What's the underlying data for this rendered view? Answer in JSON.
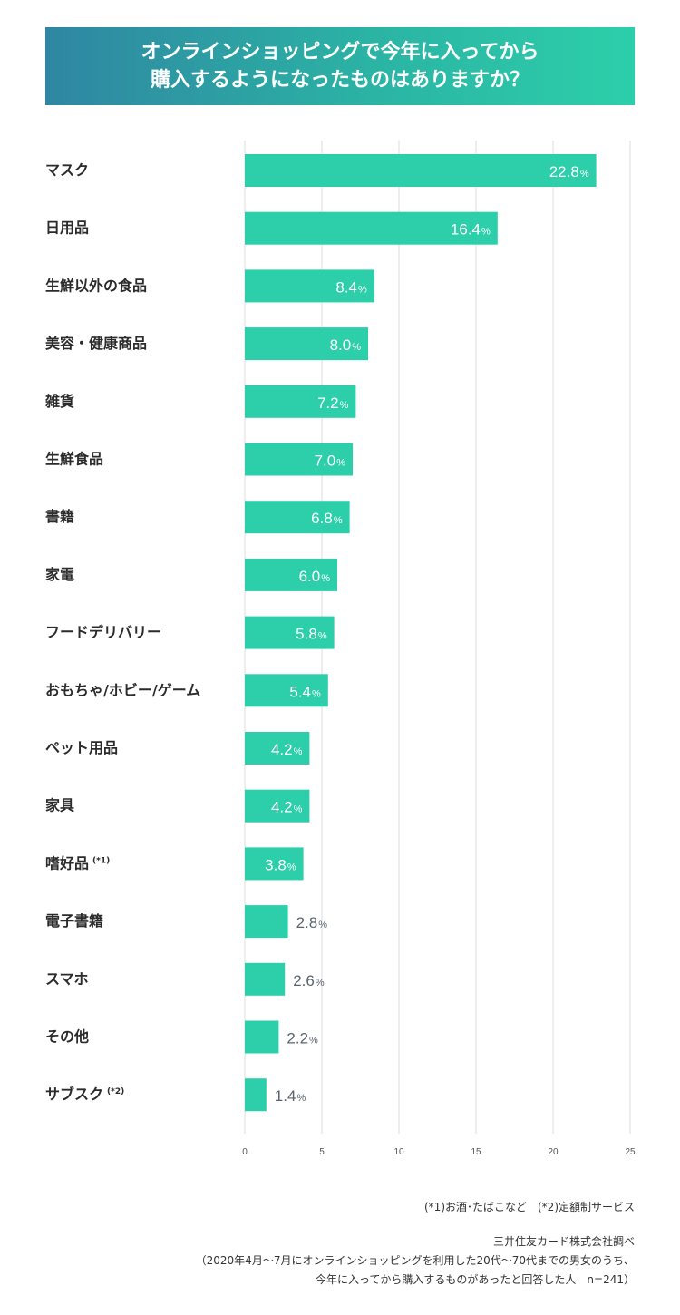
{
  "header": {
    "title_line1": "オンラインショッピングで今年に入ってから",
    "title_line2": "購入するようになったものはありますか？"
  },
  "chart_data": {
    "type": "bar",
    "orientation": "horizontal",
    "categories": [
      "マスク",
      "日用品",
      "生鮮以外の食品",
      "美容・健康商品",
      "雑貨",
      "生鮮食品",
      "書籍",
      "家電",
      "フードデリバリー",
      "おもちゃ/ホビー/ゲーム",
      "ペット用品",
      "家具",
      "嗜好品",
      "電子書籍",
      "スマホ",
      "その他",
      "サブスク"
    ],
    "category_notes": [
      "",
      "",
      "",
      "",
      "",
      "",
      "",
      "",
      "",
      "",
      "",
      "",
      "(*1)",
      "",
      "",
      "",
      "(*2)"
    ],
    "values": [
      22.8,
      16.4,
      8.4,
      8.0,
      7.2,
      7.0,
      6.8,
      6.0,
      5.8,
      5.4,
      4.2,
      4.2,
      3.8,
      2.8,
      2.6,
      2.2,
      1.4
    ],
    "value_labels": [
      "22.8",
      "16.4",
      "8.4",
      "8.0",
      "7.2",
      "7.0",
      "6.8",
      "6.0",
      "5.8",
      "5.4",
      "4.2",
      "4.2",
      "3.8",
      "2.8",
      "2.6",
      "2.2",
      "1.4"
    ],
    "unit": "%",
    "xlim": [
      0,
      25
    ],
    "xticks": [
      0,
      5,
      10,
      15,
      20,
      25
    ],
    "grid": true,
    "bar_color": "#2ccfaa",
    "label_inside_color": "#ffffff",
    "label_outside_color": "#5a6470"
  },
  "footnotes": {
    "notes": "(*1)お酒･たばこなど　(*2)定額制サービス",
    "source": "三井住友カード株式会社調べ",
    "survey_line1": "（2020年4月～7月にオンラインショッピングを利用した20代～70代までの男女のうち、",
    "survey_line2": "今年に入ってから購入するものがあったと回答した人　n=241）"
  }
}
